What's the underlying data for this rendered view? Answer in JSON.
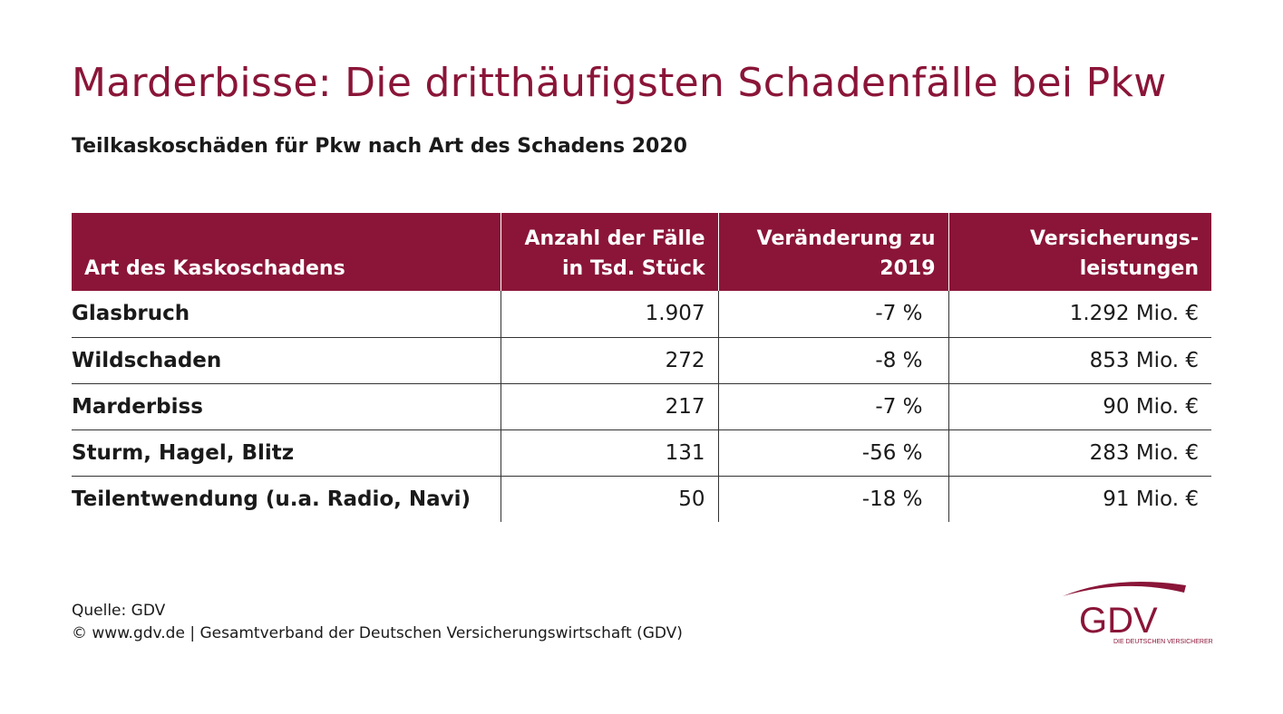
{
  "chart_data": {
    "type": "table",
    "title": "Marderbisse: Die dritthäufigsten Schadenfälle bei Pkw",
    "subtitle": "Teilkaskoschäden für Pkw nach Art des Schadens 2020",
    "columns": [
      {
        "label": [
          "Art des Kaskoschadens"
        ]
      },
      {
        "label": [
          "Anzahl der Fälle",
          "in Tsd. Stück"
        ]
      },
      {
        "label": [
          "Veränderung zu",
          "2019"
        ]
      },
      {
        "label": [
          "Versicherungs-",
          "leistungen"
        ]
      }
    ],
    "rows": [
      {
        "art": "Glasbruch",
        "anzahl": "1.907",
        "veraenderung": "-7 %",
        "leistungen": "1.292 Mio. €"
      },
      {
        "art": "Wildschaden",
        "anzahl": "272",
        "veraenderung": "-8 %",
        "leistungen": "853 Mio. €"
      },
      {
        "art": "Marderbiss",
        "anzahl": "217",
        "veraenderung": "-7 %",
        "leistungen": "90 Mio. €"
      },
      {
        "art": "Sturm, Hagel, Blitz",
        "anzahl": "131",
        "veraenderung": "-56 %",
        "leistungen": "283 Mio. €"
      },
      {
        "art": "Teilentwendung (u.a. Radio, Navi)",
        "anzahl": "50",
        "veraenderung": "-18 %",
        "leistungen": "91 Mio. €"
      }
    ]
  },
  "footer": {
    "source": "Quelle: GDV",
    "copyright": "© www.gdv.de | Gesamtverband der Deutschen Versicherungswirtschaft (GDV)"
  },
  "logo": {
    "text": "GDV",
    "tagline": "DIE DEUTSCHEN VERSICHERER"
  },
  "colors": {
    "accent": "#8a1538",
    "text": "#1a1a1a",
    "background": "#ffffff"
  }
}
